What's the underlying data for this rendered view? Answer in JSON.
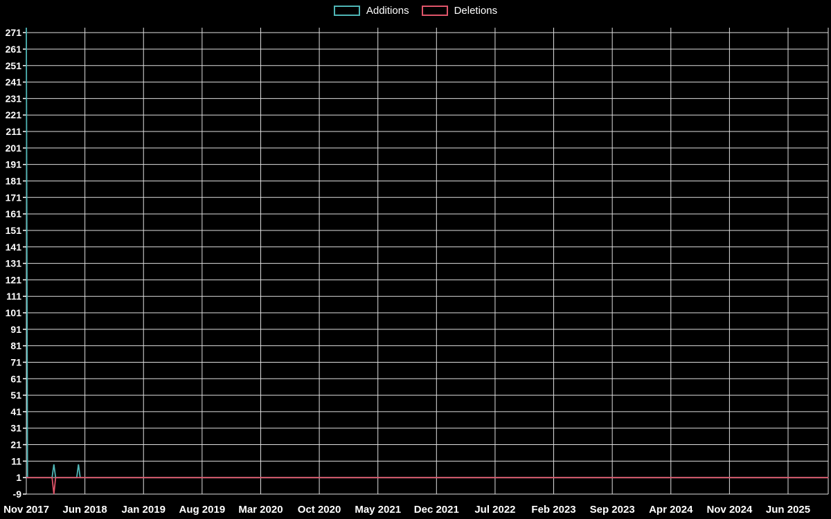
{
  "legend": {
    "items": [
      {
        "label": "Additions",
        "color": "#4fb6b6"
      },
      {
        "label": "Deletions",
        "color": "#e0556a"
      }
    ]
  },
  "chart": {
    "background_color": "#000000",
    "grid_color": "#e0e0e0",
    "text_color": "#ffffff"
  },
  "chart_data": {
    "type": "line",
    "title": "",
    "xlabel": "",
    "ylabel": "",
    "grid": true,
    "legend_position": "top-center",
    "x_unit": "tick-index (0 = Nov 2017, 1 = Jun 2018, ...)",
    "x_tick_labels": [
      "Nov 2017",
      "Jun 2018",
      "Jan 2019",
      "Aug 2019",
      "Mar 2020",
      "Oct 2020",
      "May 2021",
      "Dec 2021",
      "Jul 2022",
      "Feb 2023",
      "Sep 2023",
      "Apr 2024",
      "Nov 2024",
      "Jun 2025"
    ],
    "y_ticks": [
      271,
      261,
      251,
      241,
      231,
      221,
      211,
      201,
      191,
      181,
      171,
      161,
      151,
      141,
      131,
      121,
      111,
      101,
      91,
      81,
      71,
      61,
      51,
      41,
      31,
      21,
      11,
      1,
      -9
    ],
    "ylim": [
      -9,
      274
    ],
    "xlim_ticks": [
      0,
      13.69
    ],
    "series": [
      {
        "name": "Additions",
        "color": "#4fb6b6",
        "points": [
          [
            0,
            274
          ],
          [
            0.02,
            1
          ],
          [
            0.44,
            1
          ],
          [
            0.47,
            9
          ],
          [
            0.5,
            1
          ],
          [
            0.86,
            1
          ],
          [
            0.89,
            9
          ],
          [
            0.92,
            1
          ],
          [
            13.69,
            1
          ]
        ]
      },
      {
        "name": "Deletions",
        "color": "#e0556a",
        "points": [
          [
            0,
            1
          ],
          [
            0.44,
            1
          ],
          [
            0.47,
            -9
          ],
          [
            0.5,
            1
          ],
          [
            13.69,
            1
          ]
        ]
      }
    ]
  }
}
